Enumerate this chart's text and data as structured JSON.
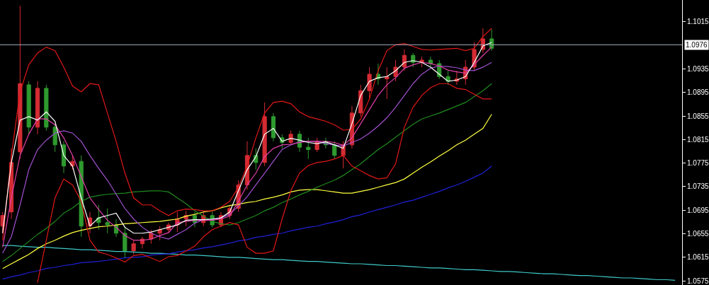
{
  "chart_data": {
    "type": "candlestick",
    "categories": [
      null,
      null,
      null,
      null,
      null,
      null,
      null,
      null,
      null,
      null,
      null,
      null,
      null,
      null,
      null,
      null,
      null,
      null,
      null,
      null,
      null,
      null,
      null,
      null,
      null,
      null,
      null,
      null,
      null,
      null,
      null,
      null,
      null,
      null,
      null,
      null,
      null,
      null,
      null,
      null,
      null,
      null,
      null,
      null,
      null,
      null,
      null,
      null,
      null,
      null,
      null,
      null,
      null,
      null,
      null,
      null,
      null,
      null,
      null,
      null,
      null,
      null,
      null,
      null,
      null,
      null,
      null,
      null,
      null,
      null,
      null,
      null,
      null,
      null,
      null,
      null,
      null,
      null
    ],
    "ohlc": [
      [
        1.0668,
        1.0692,
        1.0656,
        1.0686
      ],
      [
        1.0692,
        1.08,
        1.068,
        1.0776
      ],
      [
        1.0794,
        1.1042,
        1.0782,
        1.091
      ],
      [
        1.0908,
        1.0914,
        1.0824,
        1.0836
      ],
      [
        1.0836,
        1.0914,
        1.0824,
        1.0902
      ],
      [
        1.0902,
        1.0908,
        1.083,
        1.0836
      ],
      [
        1.0836,
        1.0842,
        1.0794,
        1.0806
      ],
      [
        1.0806,
        1.0812,
        1.0758,
        1.077
      ],
      [
        1.077,
        1.0788,
        1.0764,
        1.0778
      ],
      [
        1.0778,
        1.0788,
        1.065,
        1.0668
      ],
      [
        1.0668,
        1.0692,
        1.0656,
        1.0682
      ],
      [
        1.0682,
        1.0704,
        1.0662,
        1.0674
      ],
      [
        1.0674,
        1.0698,
        1.0656,
        1.067
      ],
      [
        1.067,
        1.068,
        1.065,
        1.0656
      ],
      [
        1.0656,
        1.0668,
        1.0614,
        1.0626
      ],
      [
        1.0626,
        1.0644,
        1.062,
        1.0638
      ],
      [
        1.0638,
        1.065,
        1.063,
        1.0646
      ],
      [
        1.0646,
        1.0662,
        1.0638,
        1.0656
      ],
      [
        1.0656,
        1.0668,
        1.0644,
        1.0662
      ],
      [
        1.0662,
        1.0674,
        1.0656,
        1.067
      ],
      [
        1.067,
        1.0692,
        1.0658,
        1.068
      ],
      [
        1.068,
        1.0694,
        1.0668,
        1.0686
      ],
      [
        1.0686,
        1.0692,
        1.0666,
        1.0674
      ],
      [
        1.0674,
        1.0692,
        1.0668,
        1.0686
      ],
      [
        1.0686,
        1.0692,
        1.0666,
        1.067
      ],
      [
        1.067,
        1.0692,
        1.0666,
        1.0686
      ],
      [
        1.0686,
        1.0704,
        1.068,
        1.0698
      ],
      [
        1.0698,
        1.0746,
        1.0692,
        1.0738
      ],
      [
        1.0738,
        1.0812,
        1.073,
        1.0788
      ],
      [
        1.0788,
        1.08,
        1.0764,
        1.0776
      ],
      [
        1.0776,
        1.0878,
        1.077,
        1.0854
      ],
      [
        1.0854,
        1.086,
        1.0812,
        1.0818
      ],
      [
        1.0818,
        1.0824,
        1.08,
        1.081
      ],
      [
        1.081,
        1.083,
        1.0806,
        1.0824
      ],
      [
        1.0824,
        1.083,
        1.0794,
        1.0802
      ],
      [
        1.0802,
        1.0818,
        1.0782,
        1.0798
      ],
      [
        1.0798,
        1.0818,
        1.0794,
        1.0812
      ],
      [
        1.0812,
        1.0818,
        1.08,
        1.0806
      ],
      [
        1.0806,
        1.0812,
        1.0782,
        1.0788
      ],
      [
        1.0788,
        1.0812,
        1.0766,
        1.0806
      ],
      [
        1.0806,
        1.0872,
        1.08,
        1.086
      ],
      [
        1.086,
        1.0908,
        1.0854,
        1.0898
      ],
      [
        1.0898,
        1.0938,
        1.0884,
        1.0926
      ],
      [
        1.0926,
        1.0944,
        1.0908,
        1.0918
      ],
      [
        1.0918,
        1.0938,
        1.0884,
        1.0922
      ],
      [
        1.0922,
        1.095,
        1.0914,
        1.0938
      ],
      [
        1.0938,
        1.0968,
        1.0932,
        1.0958
      ],
      [
        1.0958,
        1.0962,
        1.0938,
        1.0946
      ],
      [
        1.0946,
        1.0956,
        1.0938,
        1.095
      ],
      [
        1.095,
        1.0956,
        1.0938,
        1.0944
      ],
      [
        1.0944,
        1.095,
        1.0918,
        1.0922
      ],
      [
        1.0922,
        1.0932,
        1.0908,
        1.0914
      ],
      [
        1.0914,
        1.0932,
        1.0908,
        1.0918
      ],
      [
        1.0918,
        1.095,
        1.0908,
        1.0938
      ],
      [
        1.0938,
        1.098,
        1.0932,
        1.0968
      ],
      [
        1.0968,
        1.1004,
        1.0962,
        1.0986
      ],
      [
        1.0986,
        1.1002,
        1.0966,
        1.097
      ],
      null,
      null,
      null,
      null,
      null,
      null,
      null,
      null,
      null,
      null,
      null,
      null,
      null,
      null,
      null,
      null,
      null,
      null,
      null,
      null,
      null
    ],
    "colors": [
      "#d42c34",
      "#d42c34",
      "#d42c34",
      "#2f9a2f",
      "#d42c34",
      "#2f9a2f",
      "#2f9a2f",
      "#2f9a2f",
      "#d42c34",
      "#2f9a2f",
      "#d42c34",
      "#2f9a2f",
      "#2f9a2f",
      "#2f9a2f",
      "#2f9a2f",
      "#d42c34",
      "#d42c34",
      "#d42c34",
      "#d42c34",
      "#d42c34",
      "#d42c34",
      "#d42c34",
      "#2f9a2f",
      "#d42c34",
      "#2f9a2f",
      "#d42c34",
      "#d42c34",
      "#d42c34",
      "#d42c34",
      "#2f9a2f",
      "#d42c34",
      "#2f9a2f",
      "#2f9a2f",
      "#d42c34",
      "#2f9a2f",
      "#2f9a2f",
      "#d42c34",
      "#2f9a2f",
      "#2f9a2f",
      "#d42c34",
      "#d42c34",
      "#d42c34",
      "#d42c34",
      "#2f9a2f",
      "#d42c34",
      "#d42c34",
      "#d42c34",
      "#2f9a2f",
      "#d42c34",
      "#2f9a2f",
      "#2f9a2f",
      "#2f9a2f",
      "#d42c34",
      "#d42c34",
      "#d42c34",
      "#d42c34",
      "#2f9a2f",
      null,
      null,
      null,
      null,
      null,
      null,
      null,
      null,
      null,
      null,
      null,
      null,
      null,
      null,
      null,
      null,
      null,
      null,
      null,
      null,
      null
    ],
    "series": [
      {
        "type": "line",
        "color": "#40c8c8",
        "values": [
          1.0635,
          1.0635,
          1.0634,
          1.0633,
          1.0632,
          1.0632,
          1.0631,
          1.063,
          1.0629,
          1.0628,
          1.0628,
          1.0627,
          1.0626,
          1.0625,
          1.0625,
          1.0624,
          1.0623,
          1.0622,
          1.0622,
          1.0621,
          1.062,
          1.0619,
          1.0619,
          1.0618,
          1.0617,
          1.0616,
          1.0615,
          1.0615,
          1.0614,
          1.0613,
          1.0612,
          1.0611,
          1.0611,
          1.061,
          1.0609,
          1.0608,
          1.0608,
          1.0607,
          1.0606,
          1.0605,
          1.0604,
          1.0604,
          1.0603,
          1.0602,
          1.0601,
          1.0601,
          1.06,
          1.0599,
          1.0598,
          1.0597,
          1.0597,
          1.0596,
          1.0595,
          1.0594,
          1.0594,
          1.0593,
          1.0592,
          1.0591,
          1.0591,
          1.059,
          1.0589,
          1.0588,
          1.0587,
          1.0587,
          1.0586,
          1.0585,
          1.0584,
          1.0584,
          1.0583,
          1.0582,
          1.0581,
          1.058,
          1.058,
          1.0579,
          1.0578,
          1.0577,
          1.0577,
          1.0576
        ]
      },
      {
        "type": "line",
        "color": "#2020d8",
        "values": [
          1.0578,
          1.0582,
          1.0585,
          1.0589,
          1.0592,
          1.0596,
          1.0598,
          1.0601,
          1.0603,
          1.0606,
          1.0607,
          1.0608,
          1.061,
          1.0612,
          1.0614,
          1.0615,
          1.0616,
          1.0619,
          1.062,
          1.0621,
          1.0624,
          1.0626,
          1.0628,
          1.0631,
          1.0633,
          1.0636,
          1.0639,
          1.0643,
          1.0645,
          1.0649,
          1.0651,
          1.0654,
          1.0656,
          1.066,
          1.0663,
          1.0666,
          1.0668,
          1.0672,
          1.0675,
          1.0679,
          1.0684,
          1.0687,
          1.0692,
          1.0696,
          1.07,
          1.0704,
          1.0709,
          1.0712,
          1.0717,
          1.0722,
          1.0727,
          1.0733,
          1.0738,
          1.0744,
          1.0751,
          1.0758,
          1.077,
          null,
          null,
          null,
          null,
          null,
          null,
          null,
          null,
          null,
          null,
          null,
          null,
          null,
          null,
          null,
          null,
          null,
          null,
          null,
          null,
          null
        ]
      },
      {
        "type": "line",
        "color": "#ffff40",
        "values": [
          1.0596,
          1.0604,
          1.0612,
          1.062,
          1.063,
          1.0638,
          1.0644,
          1.0651,
          1.0657,
          1.0661,
          1.0664,
          1.0667,
          1.0668,
          1.067,
          1.0672,
          1.0673,
          1.0674,
          1.0675,
          1.0676,
          1.0678,
          1.068,
          1.0685,
          1.0688,
          1.0692,
          1.0694,
          1.0699,
          1.0703,
          1.0705,
          1.0708,
          1.071,
          1.0714,
          1.0717,
          1.0721,
          1.0726,
          1.0729,
          1.073,
          1.073,
          1.0728,
          1.0726,
          1.0724,
          1.0724,
          1.0727,
          1.073,
          1.0734,
          1.0738,
          1.0742,
          1.0748,
          1.0758,
          1.0768,
          1.0777,
          1.0787,
          1.0796,
          1.0806,
          1.0814,
          1.0824,
          1.0834,
          1.0858,
          null,
          null,
          null,
          null,
          null,
          null,
          null,
          null,
          null,
          null,
          null,
          null,
          null,
          null,
          null,
          null,
          null,
          null,
          null,
          null,
          null
        ]
      },
      {
        "type": "line",
        "color": "#1f8a1f",
        "values": [
          1.0608,
          1.0618,
          1.063,
          1.0642,
          1.0654,
          1.0664,
          1.0676,
          1.069,
          1.0699,
          1.071,
          1.0717,
          1.072,
          1.0722,
          1.0723,
          1.0724,
          1.0726,
          1.0727,
          1.0728,
          1.0728,
          1.0726,
          1.0716,
          1.0706,
          1.0694,
          1.0685,
          1.0676,
          1.0672,
          1.067,
          1.0674,
          1.068,
          1.0686,
          1.0694,
          1.07,
          1.0708,
          1.0714,
          1.0721,
          1.0727,
          1.0734,
          1.074,
          1.0746,
          1.0754,
          1.0764,
          1.0774,
          1.0786,
          1.0798,
          1.0808,
          1.0819,
          1.083,
          1.0841,
          1.085,
          1.0855,
          1.086,
          1.0866,
          1.0872,
          1.0878,
          1.0888,
          1.0898,
          1.091,
          null,
          null,
          null,
          null,
          null,
          null,
          null,
          null,
          null,
          null,
          null,
          null,
          null,
          null,
          null,
          null,
          null,
          null,
          null,
          null,
          null
        ]
      },
      {
        "type": "line",
        "color": "#e01818",
        "values": [
          1.0644,
          1.0788,
          1.0896,
          1.0942,
          1.0962,
          1.0972,
          1.0966,
          1.0938,
          1.0906,
          1.0896,
          1.091,
          1.0908,
          1.086,
          1.0812,
          1.0758,
          1.0716,
          1.0704,
          1.0704,
          1.0694,
          1.0686,
          1.0694,
          1.0697,
          1.0696,
          1.0694,
          1.0694,
          1.07,
          1.071,
          1.0734,
          1.077,
          1.0818,
          1.086,
          1.0878,
          1.088,
          1.0876,
          1.0862,
          1.0854,
          1.085,
          1.0846,
          1.084,
          1.0831,
          1.0832,
          1.085,
          1.0884,
          1.0932,
          1.0966,
          1.0976,
          1.0978,
          1.0973,
          1.0968,
          1.0967,
          1.0968,
          1.0969,
          1.097,
          1.0966,
          1.097,
          1.099,
          1.1004,
          null,
          null,
          null,
          null,
          null,
          null,
          null,
          null,
          null,
          null,
          null,
          null,
          null,
          null,
          null,
          null,
          null,
          null,
          null,
          null,
          null
        ]
      },
      {
        "type": "line",
        "color": "#e01818",
        "values": [
          null,
          null,
          null,
          null,
          1.0572,
          1.0644,
          1.0716,
          1.0748,
          1.0738,
          1.071,
          1.0644,
          1.0624,
          1.062,
          1.0614,
          1.0607,
          1.0618,
          1.062,
          1.0614,
          1.0608,
          1.0616,
          1.0618,
          1.0626,
          1.0634,
          1.065,
          1.0662,
          1.0668,
          1.0674,
          1.067,
          1.0632,
          1.0622,
          1.0622,
          1.0626,
          1.068,
          1.0728,
          1.0758,
          1.0771,
          1.0776,
          1.0778,
          1.0782,
          1.0788,
          1.077,
          1.0762,
          1.0754,
          1.0748,
          1.075,
          1.0774,
          1.0836,
          1.087,
          1.089,
          1.0903,
          1.091,
          1.091,
          1.0902,
          1.09,
          1.0892,
          1.0884,
          1.0884,
          null,
          null,
          null,
          null,
          null,
          null,
          null,
          null,
          null,
          null,
          null,
          null,
          null,
          null,
          null,
          null,
          null,
          null,
          null,
          null,
          null
        ]
      },
      {
        "type": "line",
        "color": "#a050d0",
        "values": [
          1.0622,
          1.065,
          1.0704,
          1.0764,
          1.0798,
          1.0814,
          1.0826,
          1.083,
          1.0826,
          1.0812,
          1.0788,
          1.0766,
          1.0746,
          1.0722,
          1.0698,
          1.068,
          1.0666,
          1.0656,
          1.065,
          1.0646,
          1.0654,
          1.0662,
          1.0673,
          1.0679,
          1.0679,
          1.0682,
          1.0688,
          1.0702,
          1.0718,
          1.0738,
          1.0758,
          1.0778,
          1.0798,
          1.0806,
          1.0811,
          1.0812,
          1.0812,
          1.0808,
          1.0806,
          1.0804,
          1.081,
          1.0816,
          1.0826,
          1.0838,
          1.0852,
          1.087,
          1.089,
          1.091,
          1.0926,
          1.0936,
          1.094,
          1.0939,
          1.0937,
          1.0933,
          1.0932,
          1.0938,
          1.0946,
          null,
          null,
          null,
          null,
          null,
          null,
          null,
          null,
          null,
          null,
          null,
          null,
          null,
          null,
          null,
          null,
          null,
          null,
          null,
          null,
          null
        ]
      },
      {
        "type": "line",
        "color": "#e040a8",
        "values": [
          1.0632,
          1.0716,
          1.0788,
          1.0824,
          1.085,
          1.085,
          1.084,
          1.0818,
          1.0788,
          1.0752,
          1.0716,
          1.0696,
          1.0678,
          1.0666,
          1.0652,
          1.0644,
          1.0644,
          1.0646,
          1.0652,
          1.0657,
          1.0674,
          1.0676,
          1.0678,
          1.0678,
          1.0678,
          1.068,
          1.0685,
          1.071,
          1.0738,
          1.0758,
          1.0786,
          1.08,
          1.0806,
          1.0807,
          1.081,
          1.0812,
          1.0812,
          1.0812,
          1.081,
          1.0805,
          1.0818,
          1.0842,
          1.0866,
          1.089,
          1.0908,
          1.092,
          1.0936,
          1.0942,
          1.0946,
          1.0944,
          1.094,
          1.0933,
          1.093,
          1.0928,
          1.0942,
          1.0958,
          1.0972,
          null,
          null,
          null,
          null,
          null,
          null,
          null,
          null,
          null,
          null,
          null,
          null,
          null,
          null,
          null,
          null,
          null,
          null,
          null,
          null,
          null
        ]
      },
      {
        "type": "line",
        "color": "#ffffff",
        "values": [
          1.0656,
          1.0776,
          1.0848,
          1.0854,
          1.0848,
          1.0862,
          1.0846,
          1.0788,
          1.077,
          1.0716,
          1.0668,
          1.0682,
          1.0686,
          1.069,
          1.0666,
          1.0656,
          1.0656,
          1.0658,
          1.0662,
          1.0666,
          1.067,
          1.0678,
          1.0679,
          1.0679,
          1.068,
          1.0682,
          1.0692,
          1.0728,
          1.0764,
          1.0786,
          1.0824,
          1.0834,
          1.0812,
          1.0817,
          1.0814,
          1.081,
          1.0808,
          1.0811,
          1.0806,
          1.08,
          1.0842,
          1.089,
          1.0914,
          1.092,
          1.0922,
          1.0932,
          1.0946,
          1.0949,
          1.0946,
          1.0938,
          1.0926,
          1.0914,
          1.0916,
          1.0922,
          1.0946,
          1.0974,
          1.098,
          null,
          null,
          null,
          null,
          null,
          null,
          null,
          null,
          null,
          null,
          null,
          null,
          null,
          null,
          null,
          null,
          null,
          null,
          null,
          null,
          null
        ]
      }
    ],
    "ylim": [
      1.0568,
      1.1052
    ],
    "yticks": [
      1.1015,
      1.0935,
      1.0895,
      1.0855,
      1.0815,
      1.0775,
      1.0735,
      1.0695,
      1.0655,
      1.0615,
      1.0575
    ],
    "tick_labels": "y",
    "ref_lines": [
      {
        "axis": "y",
        "value": 1.0976,
        "label": "1.0976",
        "color": "#a8b0c0"
      }
    ]
  }
}
